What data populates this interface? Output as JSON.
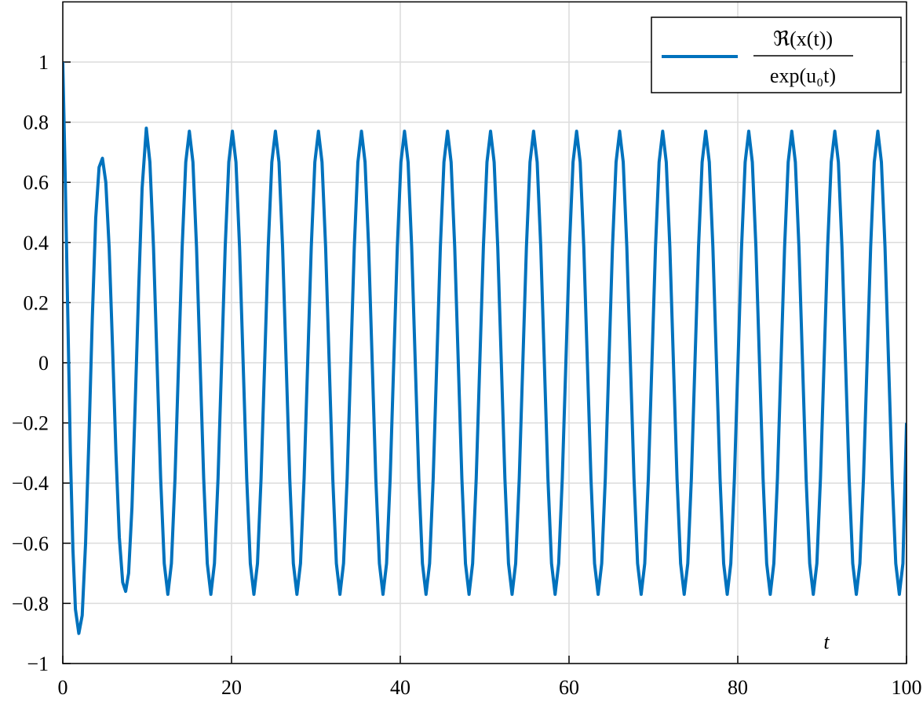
{
  "chart_data": {
    "type": "line",
    "xlabel": "t",
    "xlim": [
      0,
      100
    ],
    "xticks": [
      0,
      20,
      40,
      60,
      80,
      100
    ],
    "ylim": [
      -1,
      1.2
    ],
    "yticks": [
      {
        "value": -1,
        "label": "−1"
      },
      {
        "value": -0.8,
        "label": "−0.8"
      },
      {
        "value": -0.6,
        "label": "−0.6"
      },
      {
        "value": -0.4,
        "label": "−0.4"
      },
      {
        "value": -0.2,
        "label": "−0.2"
      },
      0,
      0.2,
      0.4,
      0.6,
      0.8,
      1
    ],
    "grid": true,
    "legend": "upper right",
    "x": [
      0,
      0.3,
      0.6,
      0.9,
      1.2,
      1.5,
      1.9,
      2.3,
      2.7,
      3.1,
      3.5,
      3.9,
      4.3,
      4.7,
      5.1,
      5.5,
      5.9,
      6.3,
      6.7,
      7.1,
      7.45,
      7.8,
      8.2,
      8.6,
      9.0,
      9.4,
      9.9,
      10.325,
      10.75,
      11.175,
      11.6,
      12.025,
      12.45,
      12.875,
      13.3,
      13.725,
      14.15,
      14.575,
      15,
      15.425,
      15.85,
      16.275,
      16.7,
      17.125,
      17.55,
      17.975,
      18.4,
      18.825,
      19.25,
      19.675,
      20.1,
      20.525,
      20.95,
      21.375,
      21.8,
      22.225,
      22.65,
      23.075,
      23.5,
      23.925,
      24.35,
      24.775,
      25.2,
      25.625,
      26.05,
      26.475,
      26.9,
      27.325,
      27.75,
      28.175,
      28.6,
      29.025,
      29.45,
      29.875,
      30.3,
      30.725,
      31.15,
      31.575,
      32,
      32.425,
      32.85,
      33.275,
      33.7,
      34.125,
      34.55,
      34.975,
      35.4,
      35.825,
      36.25,
      36.675,
      37.1,
      37.525,
      37.95,
      38.375,
      38.8,
      39.225,
      39.65,
      40.075,
      40.5,
      40.925,
      41.35,
      41.775,
      42.2,
      42.625,
      43.05,
      43.475,
      43.9,
      44.325,
      44.75,
      45.175,
      45.6,
      46.025,
      46.45,
      46.875,
      47.3,
      47.725,
      48.15,
      48.575,
      49,
      49.425,
      49.85,
      50.275,
      50.7,
      51.125,
      51.55,
      51.975,
      52.4,
      52.825,
      53.25,
      53.675,
      54.1,
      54.525,
      54.95,
      55.375,
      55.8,
      56.225,
      56.65,
      57.075,
      57.5,
      57.925,
      58.35,
      58.775,
      59.2,
      59.625,
      60.05,
      60.475,
      60.9,
      61.325,
      61.75,
      62.175,
      62.6,
      63.025,
      63.45,
      63.875,
      64.3,
      64.725,
      65.15,
      65.575,
      66,
      66.425,
      66.85,
      67.275,
      67.7,
      68.125,
      68.55,
      68.975,
      69.4,
      69.825,
      70.25,
      70.675,
      71.1,
      71.525,
      71.95,
      72.375,
      72.8,
      73.225,
      73.65,
      74.075,
      74.5,
      74.925,
      75.35,
      75.775,
      76.2,
      76.625,
      77.05,
      77.475,
      77.9,
      78.325,
      78.75,
      79.175,
      79.6,
      80.025,
      80.45,
      80.875,
      81.3,
      81.725,
      82.15,
      82.575,
      83,
      83.425,
      83.85,
      84.275,
      84.7,
      85.125,
      85.55,
      85.975,
      86.4,
      86.825,
      87.25,
      87.675,
      88.1,
      88.525,
      88.95,
      89.375,
      89.8,
      90.225,
      90.65,
      91.075,
      91.5,
      91.925,
      92.35,
      92.775,
      93.2,
      93.625,
      94.05,
      94.475,
      94.9,
      95.325,
      95.75,
      96.175,
      96.6,
      97.025,
      97.45,
      97.875,
      98.3,
      98.725,
      99.15,
      99.575,
      100
    ],
    "series": [
      {
        "name": [
          "ℜ(x(t))",
          "exp(u₀t)"
        ],
        "color": "#0072bd",
        "values": [
          1,
          0.6,
          0.15,
          -0.3,
          -0.62,
          -0.82,
          -0.9,
          -0.84,
          -0.6,
          -0.25,
          0.15,
          0.48,
          0.65,
          0.68,
          0.6,
          0.38,
          0.05,
          -0.3,
          -0.58,
          -0.73,
          -0.76,
          -0.7,
          -0.48,
          -0.12,
          0.25,
          0.58,
          0.78,
          0.667,
          0.385,
          0,
          -0.385,
          -0.667,
          -0.77,
          -0.667,
          -0.385,
          0,
          0.385,
          0.667,
          0.77,
          0.667,
          0.385,
          0,
          -0.385,
          -0.667,
          -0.77,
          -0.667,
          -0.385,
          0,
          0.385,
          0.667,
          0.77,
          0.667,
          0.385,
          0,
          -0.385,
          -0.667,
          -0.77,
          -0.667,
          -0.385,
          0,
          0.385,
          0.667,
          0.77,
          0.667,
          0.385,
          0,
          -0.385,
          -0.667,
          -0.77,
          -0.667,
          -0.385,
          0,
          0.385,
          0.667,
          0.77,
          0.667,
          0.385,
          0,
          -0.385,
          -0.667,
          -0.77,
          -0.667,
          -0.385,
          0,
          0.385,
          0.667,
          0.77,
          0.667,
          0.385,
          0,
          -0.385,
          -0.667,
          -0.77,
          -0.667,
          -0.385,
          0,
          0.385,
          0.667,
          0.77,
          0.667,
          0.385,
          0,
          -0.385,
          -0.667,
          -0.77,
          -0.667,
          -0.385,
          0,
          0.385,
          0.667,
          0.77,
          0.667,
          0.385,
          0,
          -0.385,
          -0.667,
          -0.77,
          -0.667,
          -0.385,
          0,
          0.385,
          0.667,
          0.77,
          0.667,
          0.385,
          0,
          -0.385,
          -0.667,
          -0.77,
          -0.667,
          -0.385,
          0,
          0.385,
          0.667,
          0.77,
          0.667,
          0.385,
          0,
          -0.385,
          -0.667,
          -0.77,
          -0.667,
          -0.385,
          0,
          0.385,
          0.667,
          0.77,
          0.667,
          0.385,
          0,
          -0.385,
          -0.667,
          -0.77,
          -0.667,
          -0.385,
          0,
          0.385,
          0.667,
          0.77,
          0.667,
          0.385,
          0,
          -0.385,
          -0.667,
          -0.77,
          -0.667,
          -0.385,
          0,
          0.385,
          0.667,
          0.77,
          0.667,
          0.385,
          0,
          -0.385,
          -0.667,
          -0.77,
          -0.667,
          -0.385,
          0,
          0.385,
          0.667,
          0.77,
          0.667,
          0.385,
          0,
          -0.385,
          -0.667,
          -0.77,
          -0.667,
          -0.385,
          0,
          0.385,
          0.667,
          0.77,
          0.667,
          0.385,
          0,
          -0.385,
          -0.667,
          -0.77,
          -0.667,
          -0.385,
          0,
          0.385,
          0.667,
          0.77,
          0.667,
          0.385,
          0,
          -0.385,
          -0.667,
          -0.77,
          -0.667,
          -0.385,
          0,
          0.385,
          0.667,
          0.77,
          0.667,
          0.385,
          0,
          -0.385,
          -0.667,
          -0.77,
          -0.667,
          -0.385,
          0,
          0.385,
          0.667,
          0.77,
          0.667,
          0.385,
          0,
          -0.385,
          -0.667,
          -0.77,
          -0.667,
          -0.2
        ]
      }
    ]
  }
}
